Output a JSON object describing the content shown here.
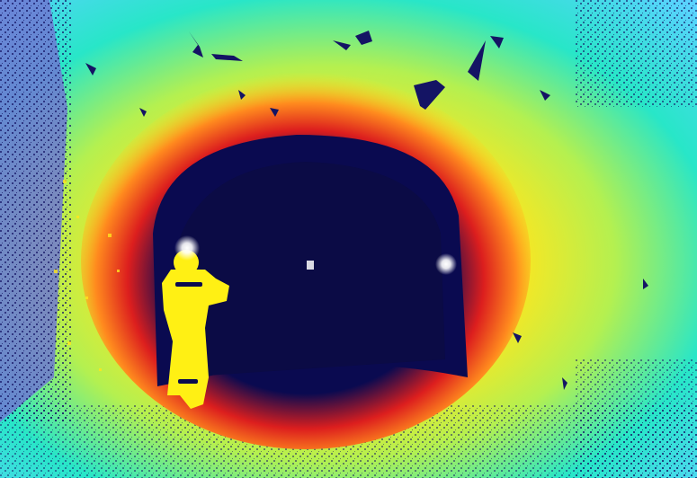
{
  "image": {
    "subject": "depth-map-tunnel-with-worker",
    "palette": {
      "near": "#dc1e1e",
      "mid_near": "#ffe61e",
      "mid": "#b4f050",
      "far_wall": "#28e6e6",
      "outer": "#5ad2ff",
      "invalid": "#141464",
      "tunnel_void": "#0a0a50",
      "lamp": "#ffffff",
      "worker": "#fff014",
      "left_panel": "#6e78d2"
    }
  }
}
